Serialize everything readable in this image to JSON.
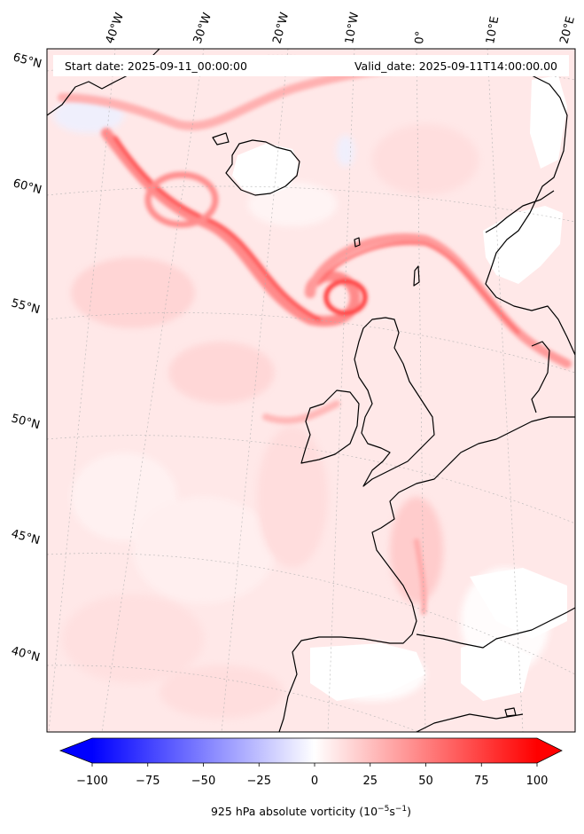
{
  "map": {
    "start_date": "Start date: 2025-09-11_00:00:00",
    "valid_date": "Valid_date: 2025-09-11T14:00:00.00",
    "lon_labels": [
      "40°W",
      "30°W",
      "20°W",
      "10°W",
      "0°",
      "10°E",
      "20°E"
    ],
    "lat_labels": [
      "65°N",
      "60°N",
      "55°N",
      "50°N",
      "45°N",
      "40°N"
    ]
  },
  "colorbar": {
    "ticks": [
      "−100",
      "−75",
      "−50",
      "−25",
      "0",
      "25",
      "50",
      "75",
      "100"
    ],
    "label_main": "925 hPa absolute vorticity (10",
    "label_exp1": "−5",
    "label_mid": "s",
    "label_exp2": "−1",
    "label_end": ")",
    "min_color": "#0000ff",
    "mid_color": "#ffffff",
    "max_color": "#ff0000"
  }
}
